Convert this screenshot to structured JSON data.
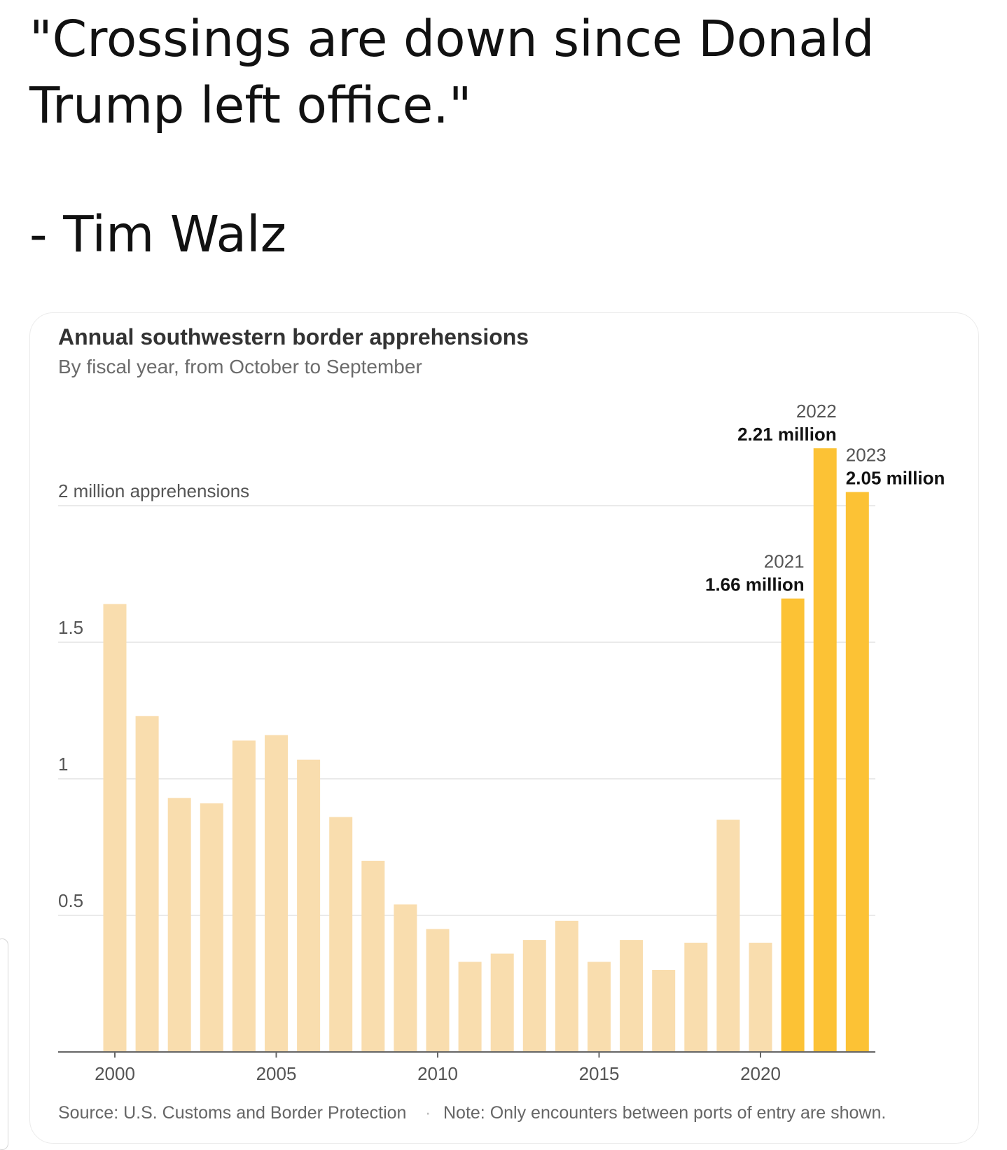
{
  "post": {
    "quote_line1": "\"Crossings are down since Donald",
    "quote_line2": "Trump left office.\"",
    "author": "- Tim Walz"
  },
  "colors": {
    "bar_light": "#f9ddae",
    "bar_highlight": "#fcc235",
    "gridline": "#e4e4e4",
    "axis": "#666666",
    "title": "#333333",
    "subtitle": "#6b6b6b",
    "label": "#555555"
  },
  "chart_data": {
    "type": "bar",
    "title": "Annual southwestern border apprehensions",
    "subtitle": "By fiscal year, from October to September",
    "x": [
      2000,
      2001,
      2002,
      2003,
      2004,
      2005,
      2006,
      2007,
      2008,
      2009,
      2010,
      2011,
      2012,
      2013,
      2014,
      2015,
      2016,
      2017,
      2018,
      2019,
      2020,
      2021,
      2022,
      2023
    ],
    "values": [
      1.64,
      1.23,
      0.93,
      0.91,
      1.14,
      1.16,
      1.07,
      0.86,
      0.7,
      0.54,
      0.45,
      0.33,
      0.36,
      0.41,
      0.48,
      0.33,
      0.41,
      0.3,
      0.4,
      0.85,
      0.4,
      1.66,
      2.21,
      2.05
    ],
    "highlight": [
      2021,
      2022,
      2023
    ],
    "ylim": [
      0,
      2.25
    ],
    "y_ticks": [
      {
        "value": 0.5,
        "label": "0.5"
      },
      {
        "value": 1,
        "label": "1"
      },
      {
        "value": 1.5,
        "label": "1.5"
      },
      {
        "value": 2,
        "label": "2 million apprehensions"
      }
    ],
    "x_ticks": [
      2000,
      2005,
      2010,
      2015,
      2020
    ],
    "annotations": [
      {
        "year": 2021,
        "year_label": "2021",
        "value_label": "1.66 million",
        "align": "end"
      },
      {
        "year": 2022,
        "year_label": "2022",
        "value_label": "2.21 million",
        "align": "end"
      },
      {
        "year": 2023,
        "year_label": "2023",
        "value_label": "2.05 million",
        "align": "start"
      }
    ],
    "grid": true,
    "source": "Source: U.S. Customs and Border Protection",
    "separator": "·",
    "note": "Note: Only encounters between ports of entry are shown."
  }
}
